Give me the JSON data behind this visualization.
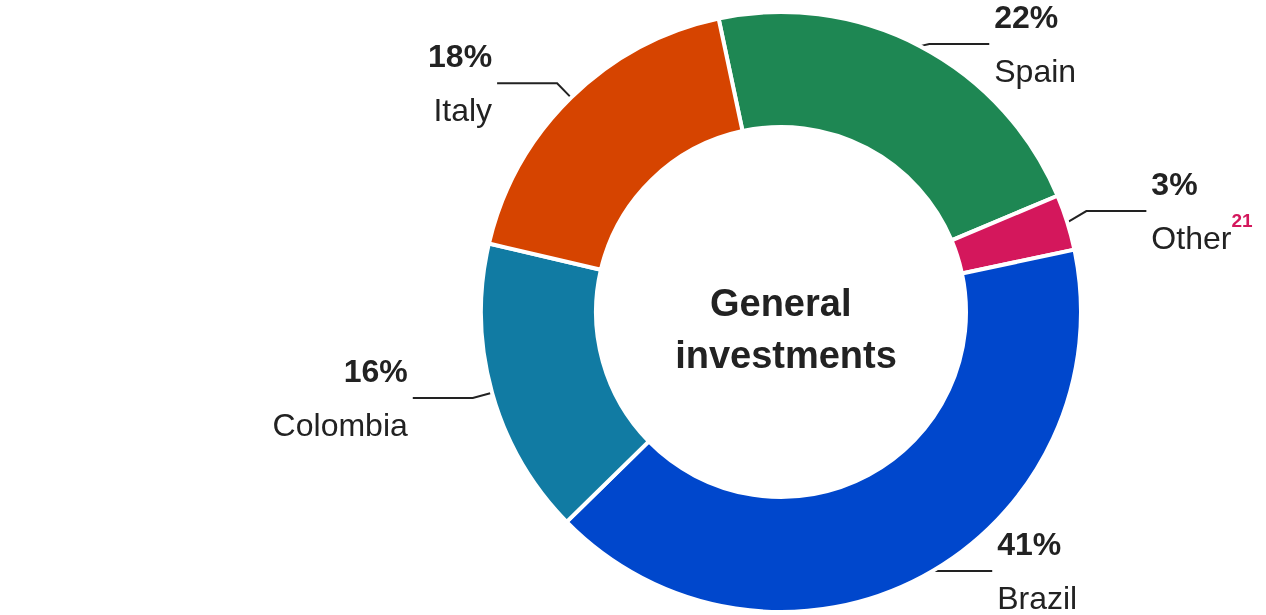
{
  "chart_data": {
    "type": "donut",
    "title": "General investments",
    "categories": [
      "Spain",
      "Other$^{21}$",
      "Brazil",
      "Colombia",
      "Italy"
    ],
    "values": [
      22,
      3,
      41,
      16,
      18
    ],
    "value_labels": [
      "22%",
      "3%",
      "41%",
      "16%",
      "18%"
    ],
    "colors": [
      "#1e8753",
      "#d4175c",
      "#0047cc",
      "#117ba3",
      "#d64400"
    ],
    "legend": false
  }
}
